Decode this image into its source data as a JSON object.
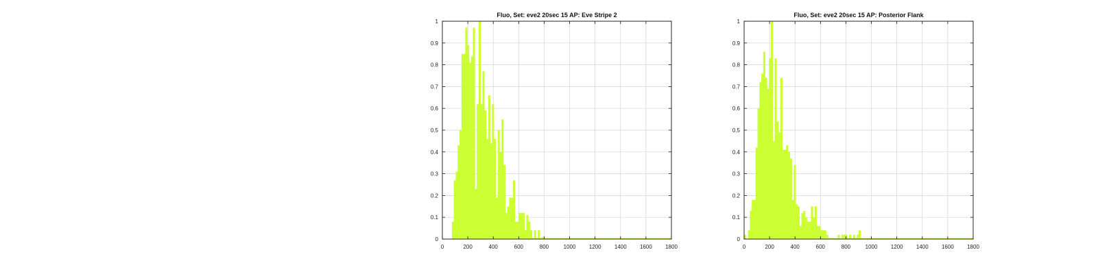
{
  "colors": {
    "bar": "#ccff33",
    "grid": "#d3d3d3",
    "axis": "#111111",
    "background": "#ffffff"
  },
  "chart_data": [
    {
      "type": "bar",
      "title": "Fluo, Set: eve2 20sec 15 AP: Eve Stripe 2",
      "xlabel": "",
      "ylabel": "",
      "xlim": [
        0,
        1800
      ],
      "ylim": [
        0,
        1
      ],
      "grid": true,
      "bin_width": 15,
      "bin_start": 0,
      "x_ticks": [
        "0",
        "200",
        "400",
        "600",
        "800",
        "1000",
        "1200",
        "1400",
        "1600",
        "1800"
      ],
      "y_ticks": [
        "0",
        "0.1",
        "0.2",
        "0.3",
        "0.4",
        "0.5",
        "0.6",
        "0.7",
        "0.8",
        "0.9",
        "1"
      ],
      "values": [
        0,
        0,
        0,
        0,
        0,
        0.08,
        0.27,
        0.31,
        0.43,
        0.5,
        0.85,
        0.85,
        0.97,
        0.89,
        0.81,
        0.84,
        0.97,
        0.23,
        0.62,
        1.0,
        0.62,
        0.77,
        0.59,
        0.46,
        0.66,
        0.44,
        0.62,
        0.46,
        0.19,
        0.5,
        0.4,
        0.55,
        0.34,
        0.12,
        0.15,
        0.19,
        0.19,
        0.27,
        0.08,
        0.08,
        0.12,
        0.12,
        0.12,
        0.04,
        0.11,
        0.08,
        0.04,
        0,
        0.04,
        0,
        0.04,
        0,
        0.01,
        0,
        0,
        0,
        0,
        0,
        0,
        0,
        0,
        0,
        0,
        0,
        0,
        0,
        0,
        0,
        0,
        0,
        0,
        0,
        0,
        0,
        0,
        0,
        0,
        0,
        0,
        0,
        0,
        0,
        0,
        0,
        0,
        0,
        0,
        0,
        0,
        0,
        0,
        0,
        0,
        0,
        0,
        0,
        0,
        0,
        0,
        0,
        0,
        0,
        0,
        0,
        0,
        0,
        0,
        0,
        0,
        0,
        0,
        0,
        0,
        0,
        0,
        0,
        0,
        0,
        0,
        0
      ]
    },
    {
      "type": "bar",
      "title": "Fluo, Set: eve2 20sec 15 AP: Posterior Flank",
      "xlabel": "",
      "ylabel": "",
      "xlim": [
        0,
        1800
      ],
      "ylim": [
        0,
        1
      ],
      "grid": true,
      "bin_width": 15,
      "bin_start": 0,
      "x_ticks": [
        "0",
        "200",
        "400",
        "600",
        "800",
        "1000",
        "1200",
        "1400",
        "1600",
        "1800"
      ],
      "y_ticks": [
        "0",
        "0.1",
        "0.2",
        "0.3",
        "0.4",
        "0.5",
        "0.6",
        "0.7",
        "0.8",
        "0.9",
        "1"
      ],
      "values": [
        0.02,
        0,
        0.04,
        0.13,
        0.18,
        0.18,
        0.42,
        0.6,
        0.72,
        0.76,
        0.86,
        0.74,
        0.69,
        0.83,
        1.0,
        0.45,
        0.83,
        0.54,
        0.49,
        0.74,
        0.41,
        0.41,
        0.43,
        0.4,
        0.37,
        0.18,
        0.34,
        0.16,
        0.15,
        0.06,
        0.12,
        0.13,
        0.1,
        0.08,
        0.08,
        0.15,
        0.1,
        0.15,
        0.06,
        0.06,
        0.04,
        0.04,
        0.04,
        0.02,
        0,
        0,
        0,
        0,
        0,
        0.02,
        0,
        0.02,
        0.02,
        0.02,
        0,
        0.02,
        0,
        0.02,
        0,
        0.02,
        0.04,
        0,
        0,
        0,
        0,
        0,
        0,
        0,
        0,
        0,
        0,
        0,
        0,
        0,
        0,
        0,
        0,
        0,
        0,
        0,
        0,
        0,
        0,
        0,
        0,
        0,
        0,
        0,
        0,
        0,
        0,
        0,
        0,
        0,
        0,
        0,
        0,
        0,
        0,
        0,
        0,
        0,
        0,
        0,
        0,
        0,
        0,
        0,
        0,
        0,
        0,
        0,
        0,
        0,
        0,
        0,
        0,
        0,
        0,
        0
      ]
    }
  ]
}
